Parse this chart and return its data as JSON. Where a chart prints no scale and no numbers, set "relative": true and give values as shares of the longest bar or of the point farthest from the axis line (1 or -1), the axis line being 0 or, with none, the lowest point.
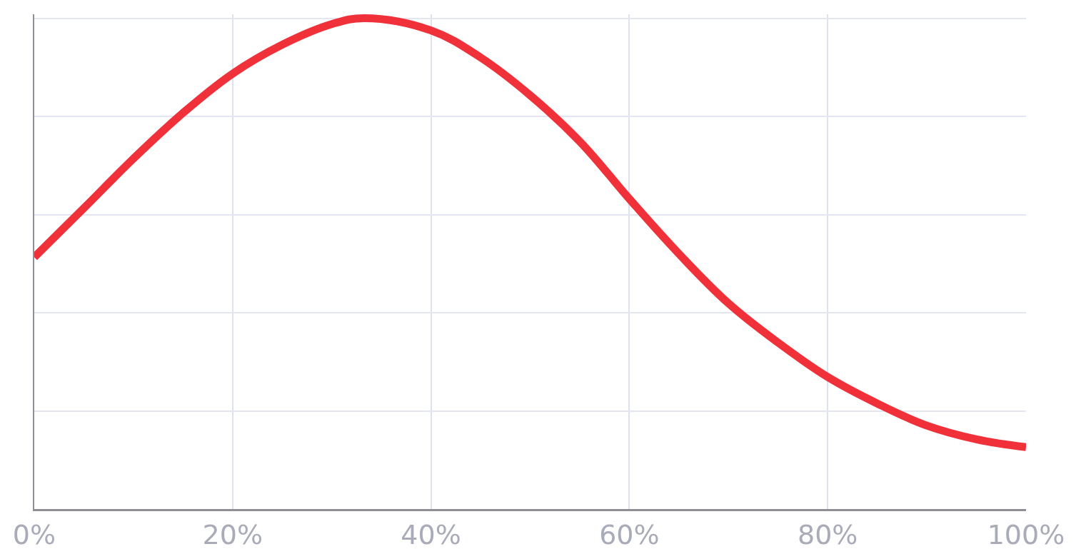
{
  "chart_data": {
    "type": "line",
    "relative": true,
    "x": [
      0,
      5.1,
      10,
      15,
      20,
      25,
      30,
      33.3,
      40,
      45,
      50,
      55,
      60,
      65,
      70,
      75,
      80,
      85,
      90,
      95,
      100
    ],
    "series": [
      {
        "color": "#f0313a",
        "values": [
          0.513,
          0.615,
          0.714,
          0.807,
          0.887,
          0.946,
          0.988,
          1,
          0.975,
          0.92,
          0.843,
          0.749,
          0.632,
          0.52,
          0.419,
          0.339,
          0.269,
          0.215,
          0.17,
          0.142,
          0.126
        ]
      }
    ],
    "xlim": [
      0,
      100
    ],
    "xticks": [
      {
        "value": 0,
        "label": "0%"
      },
      {
        "value": 20,
        "label": "20%"
      },
      {
        "value": 40,
        "label": "40%"
      },
      {
        "value": 60,
        "label": "60%"
      },
      {
        "value": 80,
        "label": "80%"
      },
      {
        "value": 100,
        "label": "100%"
      }
    ],
    "grid": true,
    "marker": "none",
    "line_style": "solid"
  }
}
